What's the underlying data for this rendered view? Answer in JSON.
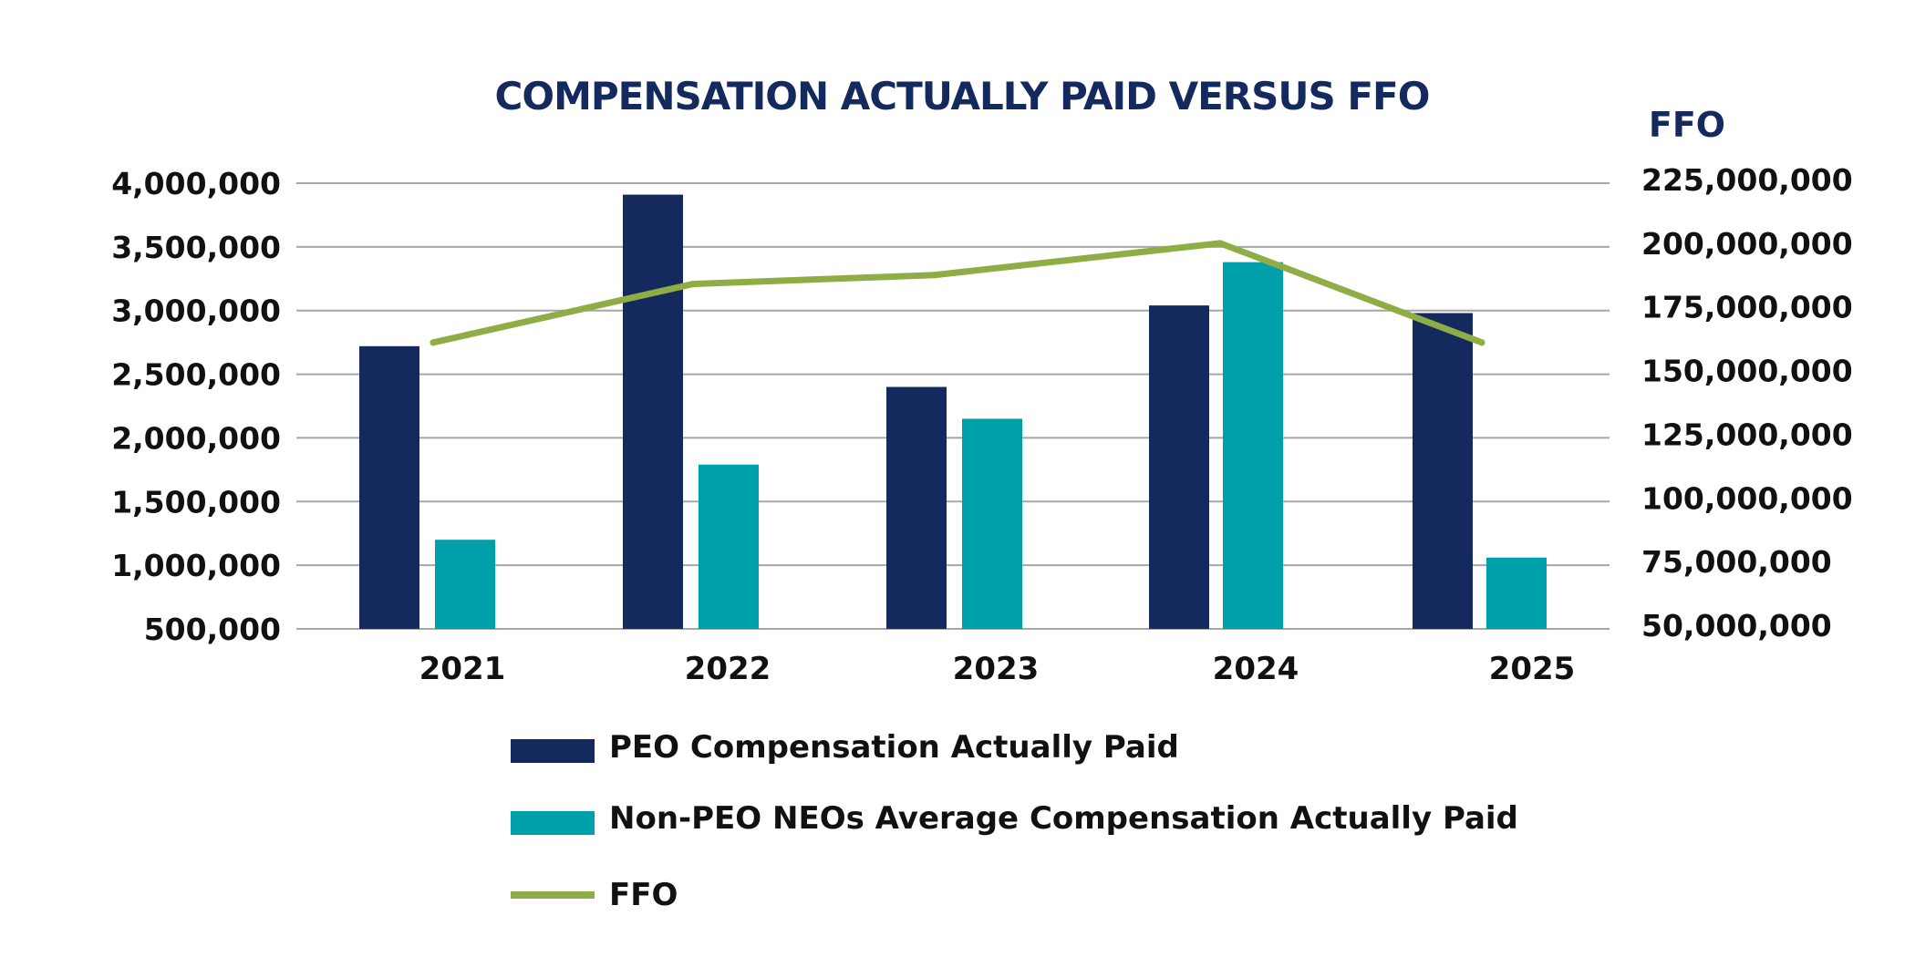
{
  "chart_data": {
    "type": "bar",
    "title": "COMPENSATION ACTUALLY PAID VERSUS FFO",
    "categories": [
      "2021",
      "2022",
      "2023",
      "2024",
      "2025"
    ],
    "series": [
      {
        "name": "PEO Compensation Actually Paid",
        "type": "bar",
        "axis": "left",
        "color": "#14295e",
        "values": [
          2720000,
          3910000,
          2400000,
          3040000,
          2980000
        ]
      },
      {
        "name": "Non-PEO NEOs Average Compensation Actually Paid",
        "type": "bar",
        "axis": "left",
        "color": "#00a0aa",
        "values": [
          1200000,
          1790000,
          2150000,
          3380000,
          1060000
        ]
      },
      {
        "name": "FFO",
        "type": "line",
        "axis": "right",
        "color": "#8fad45",
        "values": [
          161000000,
          184000000,
          187500000,
          200000000,
          161000000
        ]
      }
    ],
    "left_axis": {
      "ylim": [
        500000,
        4000000
      ],
      "ticks": [
        "4,000,000",
        "3,500,000",
        "3,000,000",
        "2,500,000",
        "2,000,000",
        "1,500,000",
        "1,000,000",
        "500,000"
      ],
      "tick_values": [
        4000000,
        3500000,
        3000000,
        2500000,
        2000000,
        1500000,
        1000000,
        500000
      ]
    },
    "right_axis": {
      "label": "FFO",
      "ylim": [
        50000000,
        225000000
      ],
      "ticks": [
        "225,000,000",
        "200,000,000",
        "175,000,000",
        "150,000,000",
        "125,000,000",
        "100,000,000",
        "75,000,000",
        "50,000,000"
      ],
      "tick_values": [
        225000000,
        200000000,
        175000000,
        150000000,
        125000000,
        100000000,
        75000000,
        50000000
      ]
    },
    "grid": true,
    "legend_position": "bottom"
  }
}
